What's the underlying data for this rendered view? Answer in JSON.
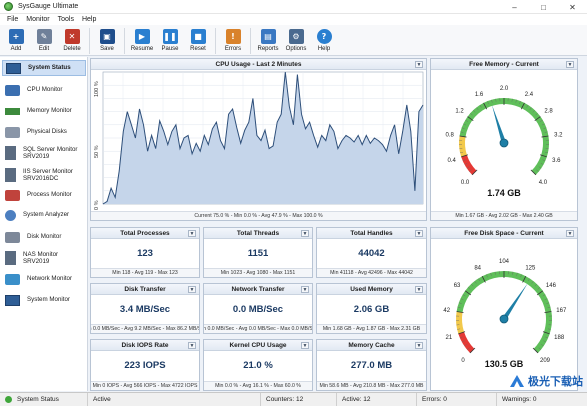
{
  "window": {
    "title": "SysGauge Ultimate",
    "controls": [
      "–",
      "□",
      "✕"
    ]
  },
  "menu": [
    "File",
    "Monitor",
    "Tools",
    "Help"
  ],
  "toolbar": [
    {
      "label": "Add",
      "icon": "add-icon",
      "color": "#2d6cb5"
    },
    {
      "label": "Edit",
      "icon": "edit-icon",
      "color": "#6f8099"
    },
    {
      "label": "Delete",
      "icon": "delete-icon",
      "color": "#c0392b"
    },
    {
      "label": "Save",
      "icon": "save-icon",
      "color": "#1f4e8c"
    },
    {
      "label": "Resume",
      "icon": "play-icon",
      "color": "#2a7fd0"
    },
    {
      "label": "Pause",
      "icon": "pause-icon",
      "color": "#2a7fd0"
    },
    {
      "label": "Reset",
      "icon": "stop-icon",
      "color": "#2a7fd0"
    },
    {
      "label": "Errors",
      "icon": "errors-icon",
      "color": "#d9822b"
    },
    {
      "label": "Reports",
      "icon": "reports-icon",
      "color": "#3a78c2"
    },
    {
      "label": "Options",
      "icon": "options-icon",
      "color": "#4a6a8f"
    },
    {
      "label": "Help",
      "icon": "help-icon",
      "color": "#2a7fd0"
    }
  ],
  "sidebar": [
    {
      "label": "System Status",
      "label2": "",
      "icon": "system-status-icon",
      "active": true
    },
    {
      "label": "CPU Monitor",
      "label2": "",
      "icon": "cpu-icon"
    },
    {
      "label": "Memory Monitor",
      "label2": "",
      "icon": "memory-icon"
    },
    {
      "label": "Physical Disks",
      "label2": "",
      "icon": "disk-icon"
    },
    {
      "label": "SQL Server Monitor",
      "label2": "SRV2019",
      "icon": "sql-server-icon"
    },
    {
      "label": "IIS Server Monitor",
      "label2": "SRV2016DC",
      "icon": "iis-server-icon"
    },
    {
      "label": "Process Monitor",
      "label2": "",
      "icon": "process-icon"
    },
    {
      "label": "System Analyzer",
      "label2": "",
      "icon": "analyzer-icon"
    },
    {
      "label": "Disk Monitor",
      "label2": "",
      "icon": "disk-monitor-icon"
    },
    {
      "label": "NAS Monitor",
      "label2": "SRV2019",
      "icon": "nas-icon"
    },
    {
      "label": "Network Monitor",
      "label2": "",
      "icon": "network-icon"
    },
    {
      "label": "System Monitor",
      "label2": "",
      "icon": "system-monitor-icon"
    }
  ],
  "cpu_panel": {
    "title": "CPU Usage - Last 2 Minutes",
    "footer": "Current 75.0 % - Min 0.0 % - Avg 47.9 % - Max 100.0 %",
    "tick_labels": [
      "100 %",
      "50 %",
      "0 %"
    ]
  },
  "chart_data": [
    {
      "type": "area",
      "title": "CPU Usage - Last 2 Minutes",
      "ylim": [
        0,
        100
      ],
      "yticks": [
        "100 %",
        "50 %",
        "0 %"
      ],
      "grid": true,
      "values": [
        0,
        2,
        12,
        5,
        25,
        55,
        70,
        60,
        50,
        72,
        60,
        40,
        52,
        42,
        63,
        55,
        45,
        55,
        60,
        42,
        50,
        52,
        38,
        46,
        40,
        52,
        45,
        57,
        62,
        48,
        42,
        68,
        72,
        58,
        46,
        56,
        62,
        80,
        52,
        48,
        56,
        42,
        44,
        62,
        68,
        100,
        74,
        60,
        98,
        68,
        57,
        62,
        52,
        43,
        52,
        48,
        60,
        55,
        42,
        48,
        52,
        50,
        47,
        52,
        45,
        52,
        46,
        50,
        48,
        45,
        40,
        52,
        60,
        38,
        55,
        75,
        55,
        10,
        70,
        75
      ]
    },
    {
      "type": "gauge",
      "title": "Free Memory - Current",
      "min": 0,
      "max": 4,
      "value": 1.74,
      "unit": "GB",
      "ticks": [
        "0.0",
        "0.4",
        "0.8",
        "1.2",
        "1.6",
        "2.0",
        "2.4",
        "2.8",
        "3.2",
        "3.6",
        "4.0"
      ]
    },
    {
      "type": "gauge",
      "title": "Free Disk Space - Current",
      "min": 0,
      "max": 209,
      "value": 130.5,
      "unit": "GB",
      "ticks": [
        "0",
        "21",
        "42",
        "63",
        "84",
        "104",
        "125",
        "146",
        "167",
        "188",
        "209"
      ]
    }
  ],
  "memory_panel": {
    "title": "Free Memory - Current",
    "value": "1.74 GB",
    "footer": "Min 1.67 GB - Avg 2.02 GB - Max 2.40 GB"
  },
  "disk_panel": {
    "title": "Free Disk Space - Current",
    "value": "130.5 GB"
  },
  "tiles": [
    {
      "title": "Total Processes",
      "value": "123",
      "footer": "Min 118 - Avg 119 - Max 123"
    },
    {
      "title": "Total Threads",
      "value": "1151",
      "footer": "Min 1023 - Avg 1080 - Max 1151"
    },
    {
      "title": "Total Handles",
      "value": "44042",
      "footer": "Min 41118 - Avg 42496 - Max 44042"
    },
    {
      "title": "Disk Transfer",
      "value": "3.4 MB/Sec",
      "footer": "Min 0.0 MB/Sec - Avg 9.2 MB/Sec - Max 86.2 MB/Sec"
    },
    {
      "title": "Network Transfer",
      "value": "0.0 MB/Sec",
      "footer": "Min 0.0 MB/Sec - Avg 0.0 MB/Sec - Max 0.0 MB/Sec"
    },
    {
      "title": "Used Memory",
      "value": "2.06 GB",
      "footer": "Min 1.68 GB - Avg 1.87 GB - Max 2.31 GB"
    },
    {
      "title": "Disk IOPS Rate",
      "value": "223 IOPS",
      "footer": "Min 0 IOPS - Avg 566 IOPS - Max 4722 IOPS"
    },
    {
      "title": "Kernel CPU Usage",
      "value": "21.0 %",
      "footer": "Min 0.0 % - Avg 16.1 % - Max 60.0 %"
    },
    {
      "title": "Memory Cache",
      "value": "277.0 MB",
      "footer": "Min 58.6 MB - Avg 210.8 MB - Max 277.0 MB"
    }
  ],
  "statusbar": {
    "view": "System Status",
    "state": "Active",
    "counters": "Counters: 12",
    "active": "Active: 12",
    "errors": "Errors: 0",
    "warnings": "Warnings: 0"
  },
  "watermark": {
    "text": "极光下载站"
  },
  "colors": {
    "accent": "#2d5f9a",
    "chart_fill": "#c5d5ea",
    "chart_line": "#2e4f7a",
    "gauge_red": "#e53935",
    "gauge_yellow": "#f2c94c",
    "gauge_green": "#5fbf5a",
    "needle": "#1e7fa6"
  }
}
